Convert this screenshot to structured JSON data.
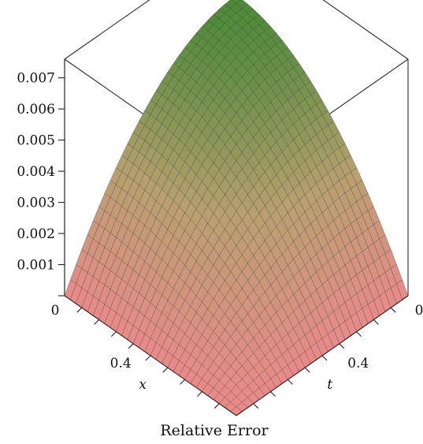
{
  "chart_data": {
    "type": "surface",
    "caption": "Relative Error",
    "x_axis": {
      "label": "x",
      "tick_labels": [
        "0",
        "0.4"
      ],
      "range": [
        0,
        1
      ]
    },
    "t_axis": {
      "label": "t",
      "tick_labels": [
        "0",
        "0.4"
      ],
      "range": [
        0,
        1
      ]
    },
    "z_axis": {
      "tick_labels": [
        "0.001",
        "0.002",
        "0.003",
        "0.004",
        "0.005",
        "0.006",
        "0.007"
      ],
      "tick_values": [
        0.001,
        0.002,
        0.003,
        0.004,
        0.005,
        0.006,
        0.007
      ],
      "range": [
        0,
        0.0076
      ]
    },
    "surface": {
      "peak_value": 0.0058,
      "grid_resolution": 30,
      "description_of_shape": "value is zero at x=0 and t=0; largest near x=1, t=1",
      "colors": {
        "low": "#e88a8a",
        "mid": "#b8a070",
        "high": "#4e8a3a"
      }
    }
  }
}
